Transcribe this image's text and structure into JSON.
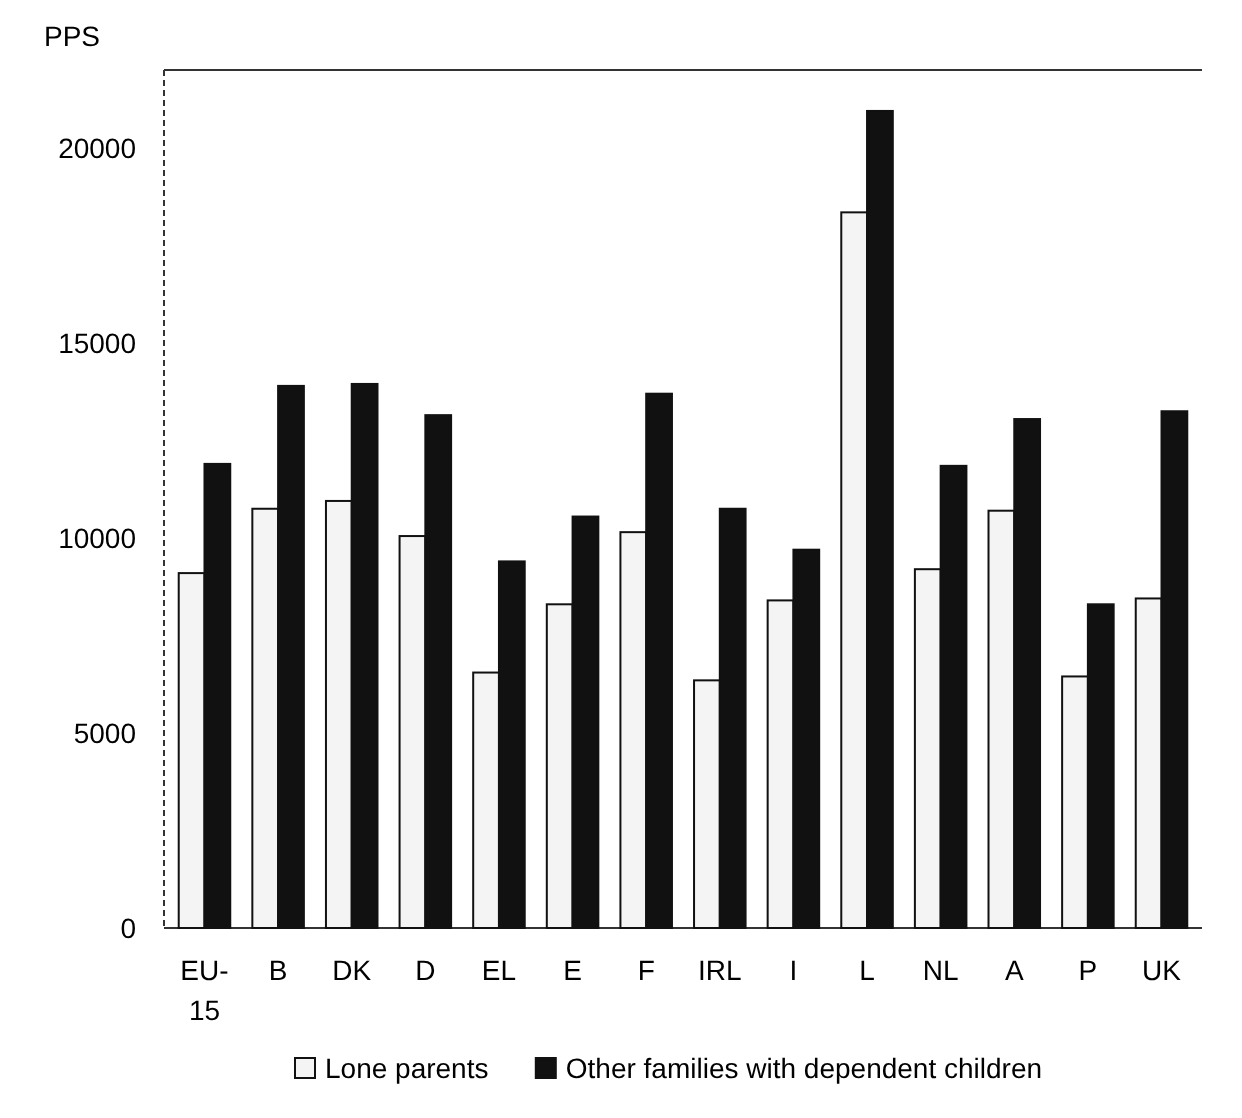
{
  "chart_data": {
    "type": "bar",
    "ylabel": "PPS",
    "categories": [
      "EU-15",
      "B",
      "DK",
      "D",
      "EL",
      "E",
      "F",
      "IRL",
      "I",
      "L",
      "NL",
      "A",
      "P",
      "UK"
    ],
    "series": [
      {
        "name": "Lone parents",
        "color": "#f4f4f4",
        "values": [
          9100,
          10750,
          10950,
          10050,
          6550,
          8300,
          10150,
          6350,
          8400,
          18350,
          9200,
          10700,
          6450,
          8450
        ]
      },
      {
        "name": "Other families with dependent children",
        "color": "#111111",
        "values": [
          11900,
          13900,
          13950,
          13150,
          9400,
          10550,
          13700,
          10750,
          9700,
          20950,
          11850,
          13050,
          8300,
          13250
        ]
      }
    ],
    "ylim": [
      0,
      22000
    ],
    "yticks": [
      0,
      5000,
      10000,
      15000,
      20000
    ],
    "grid": false,
    "legend": "bottom"
  }
}
